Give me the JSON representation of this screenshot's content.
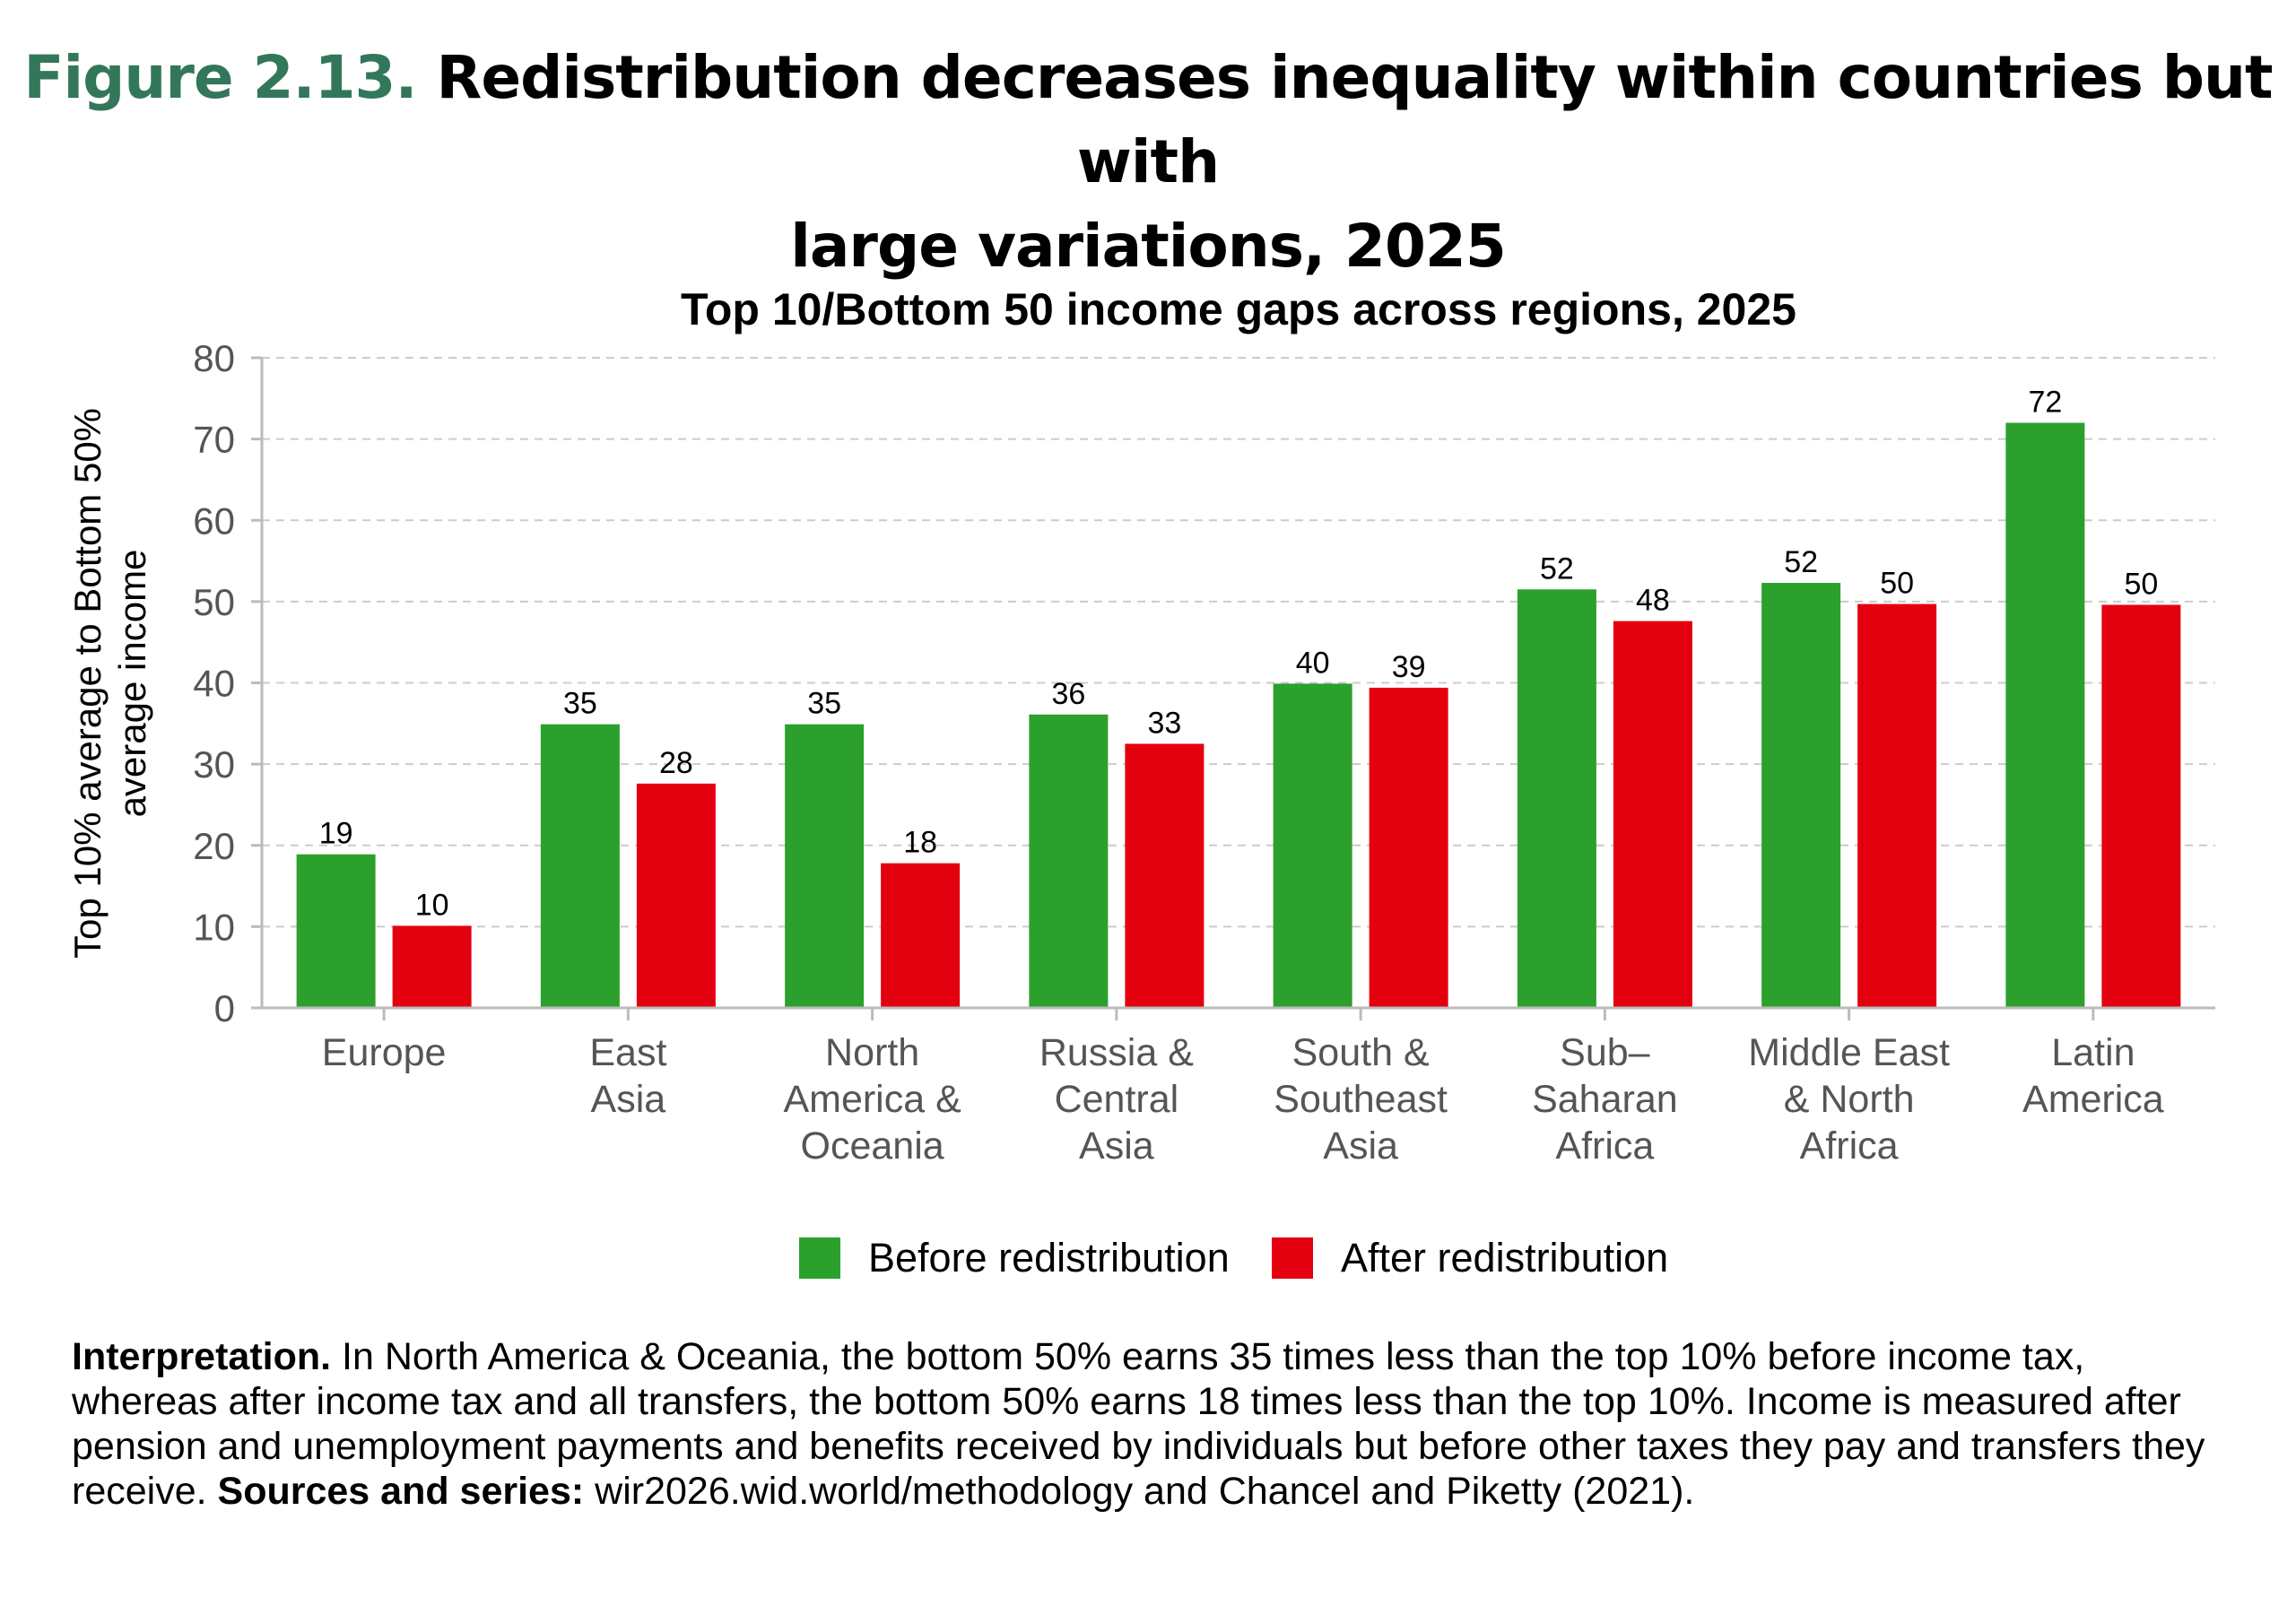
{
  "figure": {
    "number": "Figure 2.13.",
    "title_line1": "Redistribution decreases inequality within countries but with",
    "title_line2": "large variations, 2025"
  },
  "chart_data": {
    "type": "bar",
    "title": "Top 10/Bottom 50 income gaps across regions, 2025",
    "ylabel_line1": "Top 10% average to Bottom 50%",
    "ylabel_line2": "average income",
    "xlabel": "",
    "ylim": [
      0,
      80
    ],
    "yticks": [
      0,
      10,
      20,
      30,
      40,
      50,
      60,
      70,
      80
    ],
    "grid": true,
    "legend_placement": "bottom",
    "categories": [
      [
        "Europe"
      ],
      [
        "East",
        "Asia"
      ],
      [
        "North",
        "America &",
        "Oceania"
      ],
      [
        "Russia &",
        "Central",
        "Asia"
      ],
      [
        "South &",
        "Southeast",
        "Asia"
      ],
      [
        "Sub–",
        "Saharan",
        "Africa"
      ],
      [
        "Middle East",
        "& North",
        "Africa"
      ],
      [
        "Latin",
        "America"
      ]
    ],
    "series": [
      {
        "name": "Before redistribution",
        "color": "#2ca02c",
        "values": [
          18.9,
          34.9,
          34.9,
          36.1,
          39.9,
          51.5,
          52.3,
          72.0
        ]
      },
      {
        "name": "After redistribution",
        "color": "#e3000f",
        "values": [
          10.1,
          27.6,
          17.8,
          32.5,
          39.4,
          47.6,
          49.7,
          49.6
        ]
      }
    ]
  },
  "interpretation": {
    "label": "Interpretation.",
    "text": " In North America & Oceania, the bottom 50% earns 35 times less than the top 10% before income tax, whereas after income tax and all transfers, the bottom 50% earns 18 times less than the top 10%. Income is measured after pension and unemployment payments and benefits received by individuals but before other taxes they pay and transfers they receive. ",
    "sources_label": "Sources and series:",
    "sources_text": " wir2026.wid.world/methodology and Chancel and Piketty (2021)."
  }
}
